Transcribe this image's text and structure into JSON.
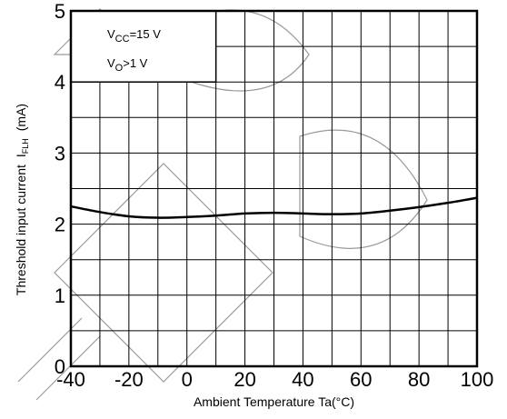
{
  "chart_data": {
    "type": "line",
    "xlabel": "Ambient Temperature Ta(°C)",
    "ylabel_main": "Threshold input current",
    "ylabel_symbol": "I",
    "ylabel_subscript": "FLH",
    "ylabel_unit": "(mA)",
    "x_ticks": [
      "-40",
      "-20",
      "0",
      "20",
      "40",
      "60",
      "80",
      "100"
    ],
    "y_ticks": [
      "0",
      "1",
      "2",
      "3",
      "4",
      "5"
    ],
    "xlim": [
      -40,
      100
    ],
    "ylim": [
      0,
      5
    ],
    "grid": true,
    "legend_box": {
      "line1_symbol": "V",
      "line1_subscript": "CC",
      "line1_value": "=15 V",
      "line2_symbol": "V",
      "line2_subscript": "O",
      "line2_value": ">1 V"
    },
    "series": [
      {
        "x": [
          -40,
          -30,
          -20,
          -10,
          0,
          10,
          20,
          30,
          40,
          50,
          60,
          70,
          80,
          90,
          100
        ],
        "y": [
          2.25,
          2.17,
          2.11,
          2.09,
          2.1,
          2.12,
          2.15,
          2.16,
          2.15,
          2.14,
          2.15,
          2.19,
          2.24,
          2.3,
          2.37
        ]
      }
    ]
  }
}
